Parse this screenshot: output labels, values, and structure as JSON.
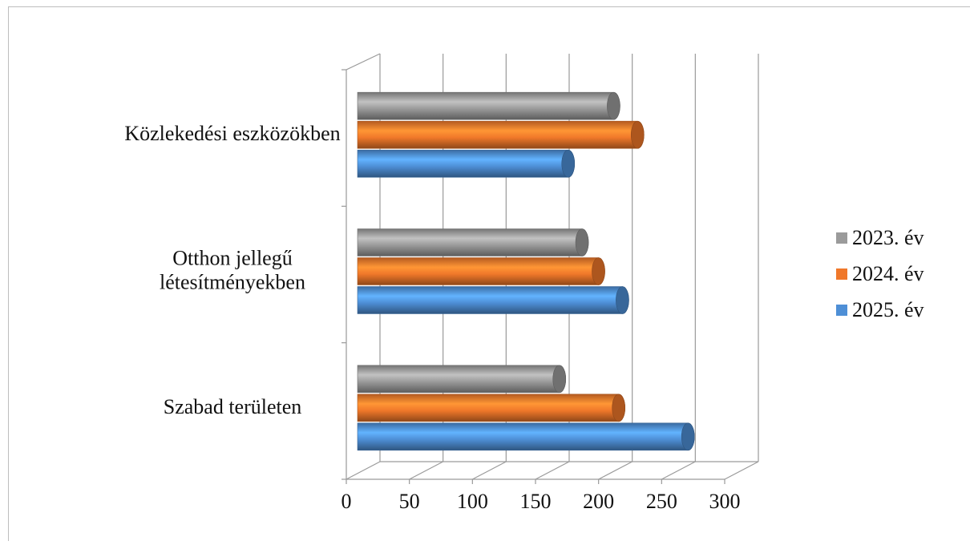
{
  "chart_data": {
    "type": "bar",
    "orientation": "horizontal",
    "style": "3d-cylinder",
    "categories": [
      "Szabad területen",
      "Otthon jellegű létesítményekben",
      "Közlekedési eszközökben"
    ],
    "category_label_lines": [
      [
        "Szabad területen"
      ],
      [
        "Otthon jellegű",
        "létesítményekben"
      ],
      [
        "Közlekedési eszközökben"
      ]
    ],
    "series": [
      {
        "name": "2023. év",
        "color": "#9b9b9b",
        "values": [
          160,
          178,
          203
        ]
      },
      {
        "name": "2024. év",
        "color": "#f0782a",
        "values": [
          207,
          191,
          222
        ]
      },
      {
        "name": "2025. év",
        "color": "#4e8fd6",
        "values": [
          262,
          210,
          167
        ]
      }
    ],
    "xlim": [
      0,
      300
    ],
    "xticks": [
      "0",
      "50",
      "100",
      "150",
      "200",
      "250",
      "300"
    ],
    "grid": true,
    "legend_position": "right",
    "title": "",
    "xlabel": "",
    "ylabel": ""
  }
}
